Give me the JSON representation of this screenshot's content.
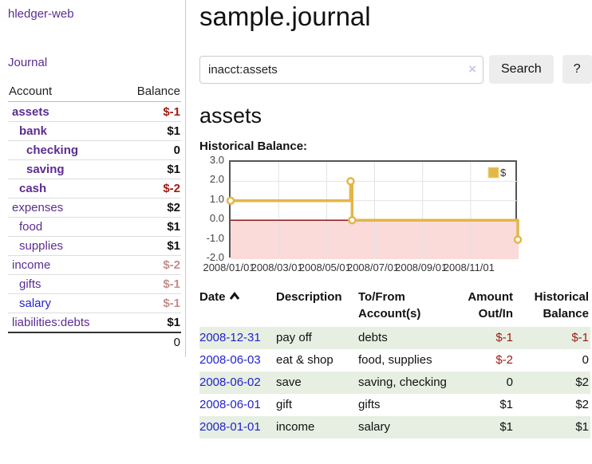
{
  "colors": {
    "purple_link": "#5b2d91",
    "blue_link": "#2323cc",
    "negative": "#9e1a10",
    "negative_faded": "#c28e8c",
    "row_green": "#e6efe2",
    "chart_line_gold": "#e3b648",
    "chart_negative_fill": "#fbdada",
    "chart_zero_line": "#8e1a1a"
  },
  "icons": {
    "sort_asc": "chevron-up",
    "clear_search": "×"
  },
  "sidebar": {
    "brand": "hledger-web",
    "journal_link": "Journal",
    "account_header": "Account",
    "balance_header": "Balance",
    "accounts": [
      {
        "name": "assets",
        "level": 1,
        "bold": true,
        "balance": "$-1",
        "balance_style": "neg"
      },
      {
        "name": "bank",
        "level": 2,
        "bold": true,
        "balance": "$1",
        "balance_style": "pos"
      },
      {
        "name": "checking",
        "level": 3,
        "bold": true,
        "balance": "0",
        "balance_style": "pos"
      },
      {
        "name": "saving",
        "level": 3,
        "bold": true,
        "balance": "$1",
        "balance_style": "pos"
      },
      {
        "name": "cash",
        "level": 2,
        "bold": true,
        "balance": "$-2",
        "balance_style": "neg"
      },
      {
        "name": "expenses",
        "level": 1,
        "bold": false,
        "balance": "$2",
        "balance_style": "pos"
      },
      {
        "name": "food",
        "level": 2,
        "bold": false,
        "balance": "$1",
        "balance_style": "pos"
      },
      {
        "name": "supplies",
        "level": 2,
        "bold": false,
        "balance": "$1",
        "balance_style": "pos"
      },
      {
        "name": "income",
        "level": 1,
        "bold": false,
        "balance": "$-2",
        "balance_style": "neg-faded"
      },
      {
        "name": "gifts",
        "level": 2,
        "bold": false,
        "balance": "$-1",
        "balance_style": "neg-faded"
      },
      {
        "name": "salary",
        "level": 2,
        "bold": false,
        "link_style": "blue",
        "balance": "$-1",
        "balance_style": "neg-faded"
      },
      {
        "name": "liabilities:debts",
        "level": 1,
        "bold": false,
        "balance": "$1",
        "balance_style": "pos"
      }
    ],
    "total": "0"
  },
  "header": {
    "title": "sample.journal"
  },
  "search": {
    "value": "inacct:assets",
    "clear_icon": "×",
    "button_label": "Search",
    "help_label": "?"
  },
  "account_page": {
    "heading": "assets",
    "chart_title": "Historical Balance:"
  },
  "chart_data": {
    "type": "line",
    "step": true,
    "title": "Historical Balance:",
    "legend": "$",
    "legend_position": "top-right",
    "grid": true,
    "ylim": [
      -2.0,
      3.0
    ],
    "yticks": [
      "3.0",
      "2.0",
      "1.0",
      "0.0",
      "-1.0",
      "-2.0"
    ],
    "ytick_values": [
      3,
      2,
      1,
      0,
      -1,
      -2
    ],
    "xticks": [
      "2008/01/01",
      "2008/03/01",
      "2008/05/01",
      "2008/07/01",
      "2008/09/01",
      "2008/11/01"
    ],
    "xtick_months": [
      0,
      2,
      4,
      6,
      8,
      10
    ],
    "x_total_months": 12,
    "series": [
      {
        "name": "$",
        "points": [
          {
            "date": "2008-01-01",
            "value": 1
          },
          {
            "date": "2008-06-01",
            "value": 2
          },
          {
            "date": "2008-06-03",
            "value": 0
          },
          {
            "date": "2008-12-31",
            "value": -1
          }
        ]
      }
    ]
  },
  "register": {
    "headers": {
      "date": "Date",
      "description": "Description",
      "tofrom_line1": "To/From",
      "tofrom_line2": "Account(s)",
      "amount_line1": "Amount",
      "amount_line2": "Out/In",
      "historical_line1": "Historical",
      "historical_line2": "Balance"
    },
    "rows": [
      {
        "date": "2008-12-31",
        "description": "pay off",
        "accounts": "debts",
        "amount": "$-1",
        "amount_neg": true,
        "historical": "$-1",
        "historical_neg": true
      },
      {
        "date": "2008-06-03",
        "description": "eat & shop",
        "accounts": "food, supplies",
        "amount": "$-2",
        "amount_neg": true,
        "historical": "0",
        "historical_neg": false
      },
      {
        "date": "2008-06-02",
        "description": "save",
        "accounts": "saving, checking",
        "amount": "0",
        "amount_neg": false,
        "historical": "$2",
        "historical_neg": false
      },
      {
        "date": "2008-06-01",
        "description": "gift",
        "accounts": "gifts",
        "amount": "$1",
        "amount_neg": false,
        "historical": "$2",
        "historical_neg": false
      },
      {
        "date": "2008-01-01",
        "description": "income",
        "accounts": "salary",
        "amount": "$1",
        "amount_neg": false,
        "historical": "$1",
        "historical_neg": false
      }
    ]
  }
}
